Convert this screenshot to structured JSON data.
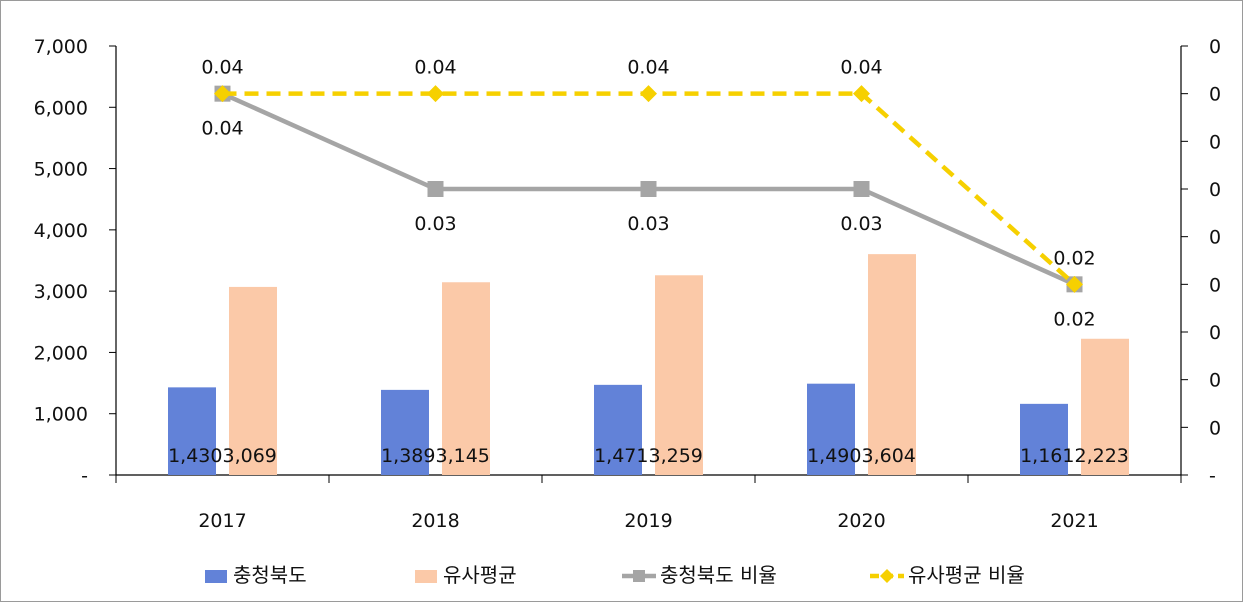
{
  "chart_data": {
    "type": "bar",
    "categories": [
      "2017",
      "2018",
      "2019",
      "2020",
      "2021"
    ],
    "series": [
      {
        "name": "충청북도",
        "kind": "bar",
        "axis": "left",
        "color": "#6282d8",
        "values": [
          1430,
          1389,
          1471,
          1490,
          1161
        ]
      },
      {
        "name": "유사평균",
        "kind": "bar",
        "axis": "left",
        "color": "#fbc9a8",
        "values": [
          3069,
          3145,
          3259,
          3604,
          2223
        ]
      },
      {
        "name": "충청북도 비율",
        "kind": "line",
        "axis": "right",
        "color": "#a5a5a5",
        "dashed": false,
        "marker": "square",
        "values": [
          0.04,
          0.03,
          0.03,
          0.03,
          0.02
        ]
      },
      {
        "name": "유사평균 비율",
        "kind": "line",
        "axis": "right",
        "color": "#f6d000",
        "dashed": true,
        "marker": "diamond",
        "values": [
          0.04,
          0.04,
          0.04,
          0.04,
          0.02
        ]
      }
    ],
    "bar_labels": [
      "1,4303,069",
      "1,3893,145",
      "1,4713,259",
      "1,4903,604",
      "1,1612,223"
    ],
    "line_labels": {
      "충청북도 비율": [
        "0.04",
        "0.03",
        "0.03",
        "0.03",
        "0.02"
      ],
      "유사평균 비율": [
        "0.04",
        "0.04",
        "0.04",
        "0.04",
        "0.02"
      ]
    },
    "y_left": {
      "ylim": [
        0,
        7000
      ],
      "ticks": [
        "-",
        "1,000",
        "2,000",
        "3,000",
        "4,000",
        "5,000",
        "6,000",
        "7,000"
      ]
    },
    "y_right": {
      "ylim": [
        0,
        0.045
      ],
      "ticks": [
        "-",
        "0",
        "0",
        "0",
        "0",
        "0",
        "0",
        "0",
        "0",
        "0"
      ]
    },
    "grid": false,
    "legend_position": "bottom"
  }
}
